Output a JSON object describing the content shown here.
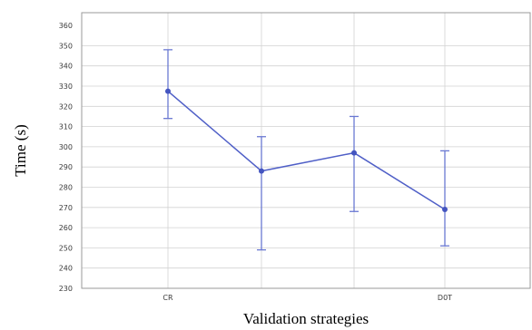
{
  "chart_data": {
    "type": "line",
    "title": "",
    "xlabel": "Validation strategies",
    "ylabel": "Time (s)",
    "categories": [
      "CR",
      "",
      "",
      "D0T"
    ],
    "y_tick_labels": [
      "230",
      "240",
      "250",
      "260",
      "270",
      "280",
      "290",
      "300",
      "310",
      "320",
      "330",
      "340",
      "350",
      "360"
    ],
    "ylim": [
      230,
      360
    ],
    "grid": true,
    "series": [
      {
        "values": [
          327.5,
          288,
          297,
          269
        ],
        "err_low": [
          314,
          249,
          268,
          251
        ],
        "err_high": [
          348,
          305,
          315,
          298
        ],
        "color": "#4f5fc7"
      }
    ]
  }
}
